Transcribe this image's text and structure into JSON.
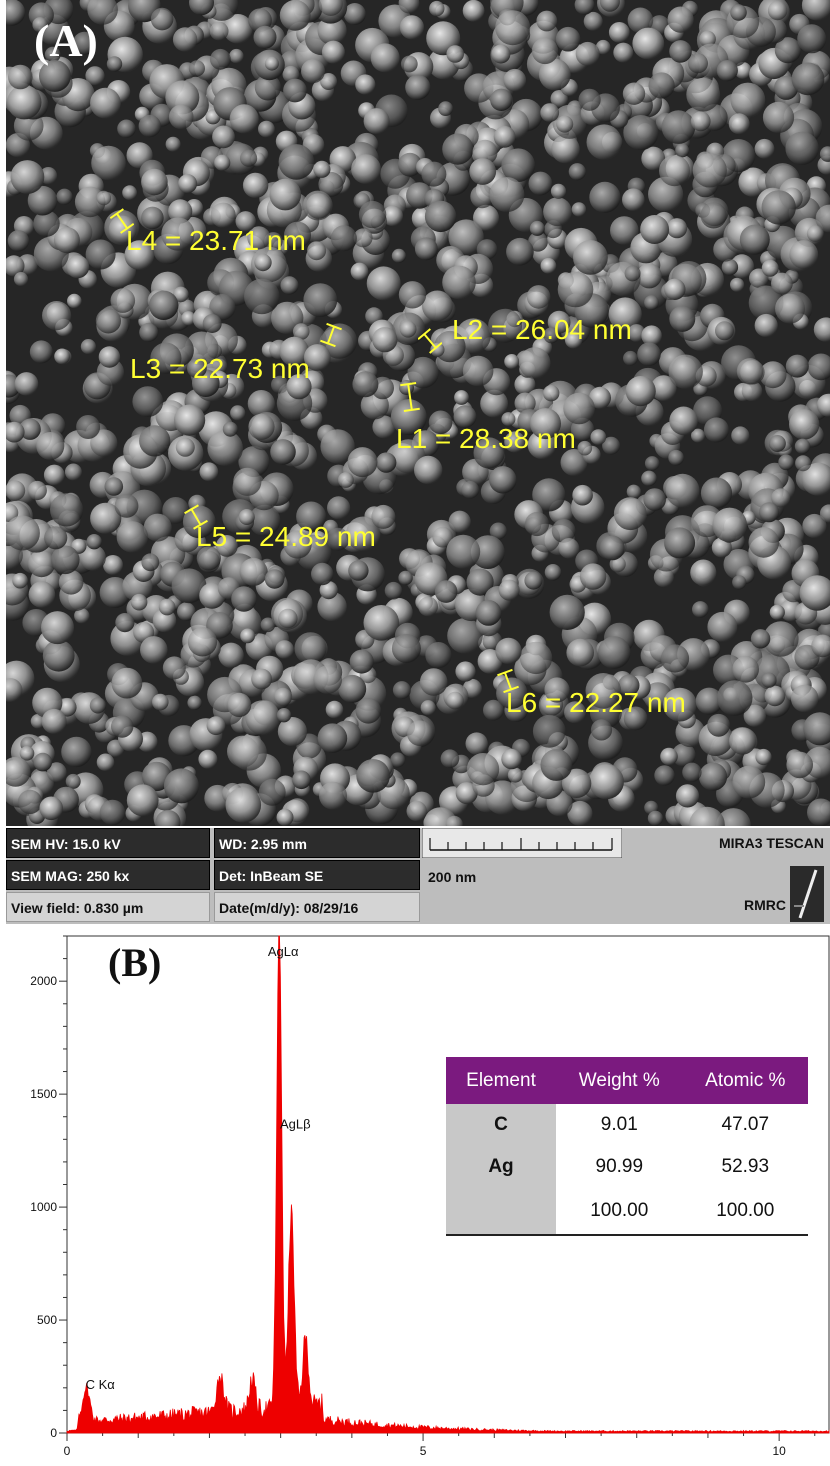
{
  "panel_a": {
    "label": "(A)",
    "measurements": [
      {
        "id": "L4",
        "text": "L4 = 23.71 nm"
      },
      {
        "id": "L2",
        "text": "L2 = 26.04 nm"
      },
      {
        "id": "L3",
        "text": "L3 = 22.73 nm"
      },
      {
        "id": "L1",
        "text": "L1 = 28.38 nm"
      },
      {
        "id": "L5",
        "text": "L5 = 24.89 nm"
      },
      {
        "id": "L6",
        "text": "L6 = 22.27 nm"
      }
    ],
    "info": {
      "hv": "SEM HV: 15.0 kV",
      "wd": "WD: 2.95 mm",
      "mag": "SEM MAG: 250 kx",
      "det": "Det: InBeam SE",
      "view_field": "View field: 0.830 µm",
      "date": "Date(m/d/y): 08/29/16",
      "scale": "200 nm",
      "brand": "MIRA3 TESCAN",
      "lab": "RMRC"
    },
    "measure_color": "#ffff33"
  },
  "panel_b": {
    "label": "(B)",
    "table": {
      "headers": [
        "Element",
        "Weight %",
        "Atomic %"
      ],
      "rows": [
        {
          "element": "C",
          "weight": "9.01",
          "atomic": "47.07"
        },
        {
          "element": "Ag",
          "weight": "90.99",
          "atomic": "52.93"
        },
        {
          "element": "",
          "weight": "100.00",
          "atomic": "100.00"
        }
      ],
      "header_color": "#7b1a7f"
    }
  },
  "chart_data": {
    "type": "area",
    "title": "",
    "xlabel": "",
    "ylabel": "",
    "xlim": [
      0,
      10.7
    ],
    "ylim": [
      0,
      2200
    ],
    "x_ticks": [
      0,
      5,
      10
    ],
    "y_ticks": [
      0,
      500,
      1000,
      1500,
      2000
    ],
    "color": "#ee0000",
    "background_level": 40,
    "peaks": [
      {
        "x": 0.27,
        "y": 150,
        "width": 0.05,
        "label": "C Kα"
      },
      {
        "x": 2.15,
        "y": 160,
        "width": 0.05,
        "label": ""
      },
      {
        "x": 2.6,
        "y": 140,
        "width": 0.04,
        "label": ""
      },
      {
        "x": 2.98,
        "y": 2120,
        "width": 0.035,
        "label": "AgLα"
      },
      {
        "x": 3.15,
        "y": 860,
        "width": 0.04,
        "label": "AgLβ"
      },
      {
        "x": 3.35,
        "y": 300,
        "width": 0.04,
        "label": ""
      }
    ]
  }
}
